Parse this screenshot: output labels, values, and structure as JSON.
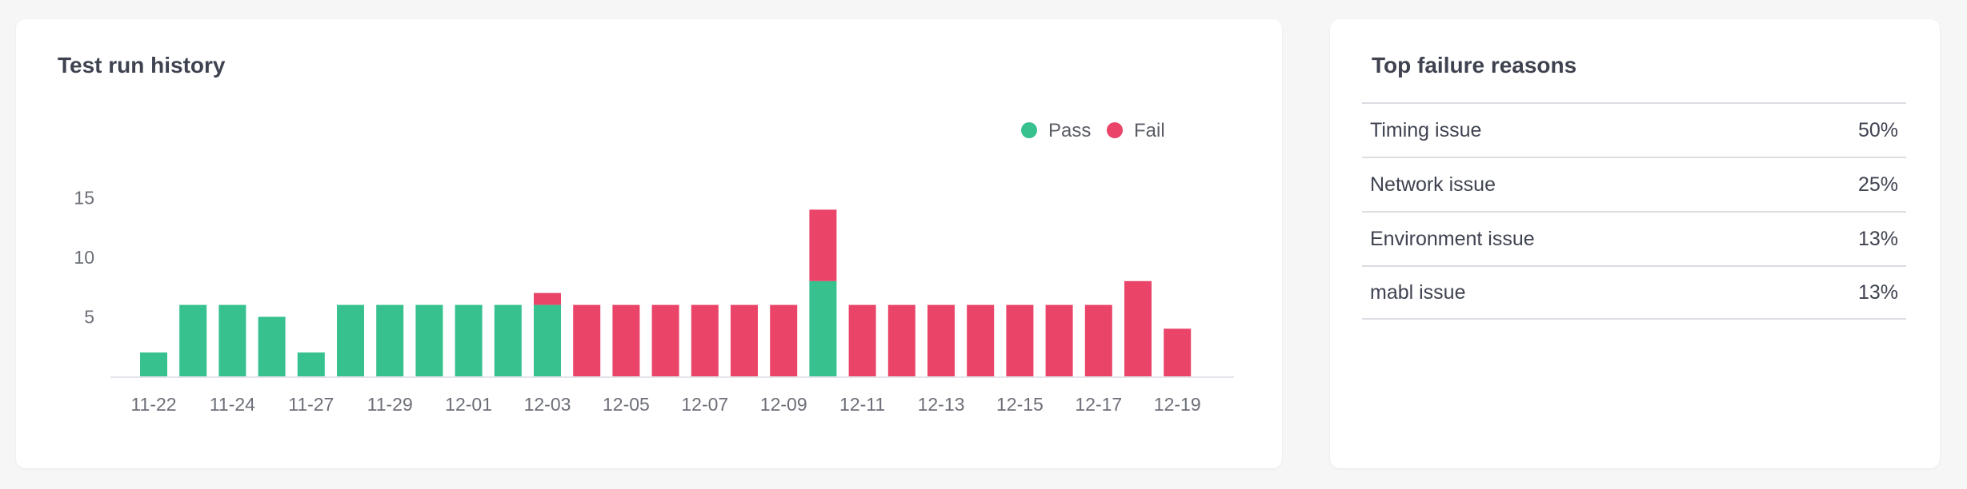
{
  "colors": {
    "pass": "#36c18f",
    "fail": "#ea4468"
  },
  "history": {
    "title": "Test run history",
    "legend": [
      {
        "label": "Pass",
        "color": "#36c18f"
      },
      {
        "label": "Fail",
        "color": "#ea4468"
      }
    ]
  },
  "chart_data": {
    "type": "bar",
    "stacked": true,
    "title": "Test run history",
    "legend_position": "top-right",
    "ylim": [
      0,
      18
    ],
    "y_ticks": [
      5,
      10,
      15
    ],
    "x_tick_labels": [
      "11-22",
      "11-24",
      "11-27",
      "11-29",
      "12-01",
      "12-03",
      "12-05",
      "12-07",
      "12-09",
      "12-11",
      "12-13",
      "12-15",
      "12-17",
      "12-19"
    ],
    "bar_count": 27,
    "series": [
      {
        "name": "Pass",
        "values": [
          2,
          6,
          6,
          5,
          2,
          6,
          6,
          6,
          6,
          6,
          6,
          0,
          0,
          0,
          0,
          0,
          0,
          8,
          0,
          0,
          0,
          0,
          0,
          0,
          0,
          0,
          0
        ]
      },
      {
        "name": "Fail",
        "values": [
          0,
          0,
          0,
          0,
          0,
          0,
          0,
          0,
          0,
          0,
          1,
          6,
          6,
          6,
          6,
          6,
          6,
          6,
          6,
          6,
          6,
          6,
          6,
          6,
          6,
          8,
          4
        ]
      }
    ]
  },
  "failures": {
    "title": "Top failure reasons",
    "rows": [
      {
        "label": "Timing issue",
        "value": "50%"
      },
      {
        "label": "Network issue",
        "value": "25%"
      },
      {
        "label": "Environment issue",
        "value": "13%"
      },
      {
        "label": "mabl issue",
        "value": "13%"
      }
    ]
  }
}
